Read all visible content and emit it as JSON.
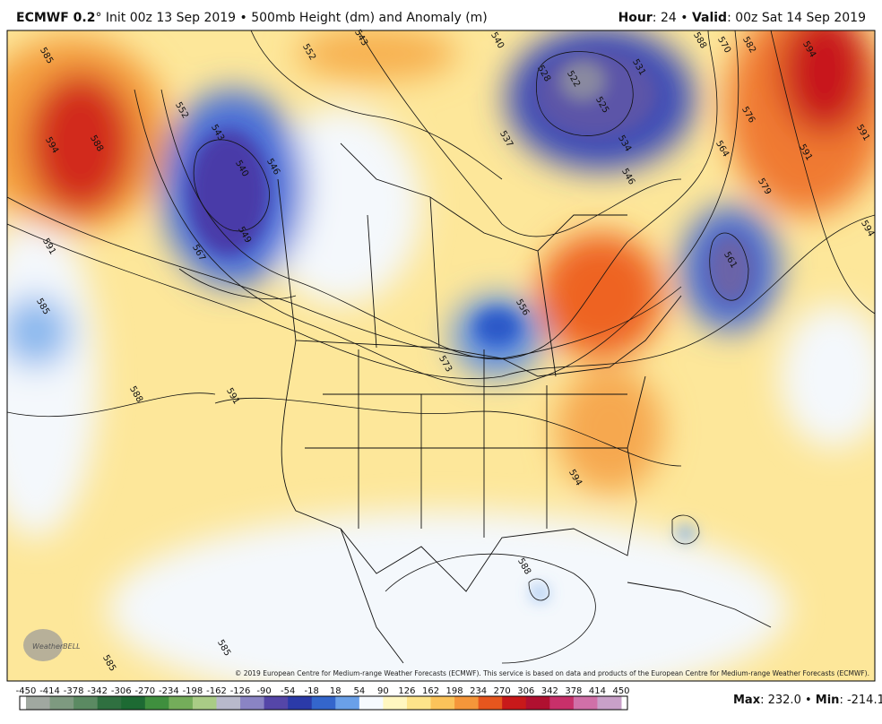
{
  "header": {
    "model": "ECMWF 0.2",
    "init": "° Init 00z 13 Sep 2019 • 500mb Height (dm) and Anomaly (m)",
    "hour_label": "Hour",
    "hour": ": 24 • ",
    "valid_label": "Valid",
    "valid": ": 00z Sat 14 Sep 2019"
  },
  "map": {
    "contour_labels": [
      543,
      552,
      540,
      585,
      594,
      588,
      552,
      543,
      540,
      546,
      549,
      567,
      591,
      585,
      588,
      591,
      528,
      522,
      531,
      525,
      534,
      546,
      537,
      588,
      582,
      594,
      570,
      576,
      564,
      591,
      579,
      594,
      561,
      556,
      573,
      594,
      588,
      585,
      585,
      591
    ],
    "copyright": "© 2019 European Centre for Medium-range Weather Forecasts (ECMWF). This service is based on data and products of the European Centre for Medium-range Weather Forecasts (ECMWF).",
    "logo": "WeatherBELL"
  },
  "colorbar": {
    "ticks": [
      -450,
      -414,
      -378,
      -342,
      -306,
      -270,
      -234,
      -198,
      -162,
      -126,
      -90,
      -54,
      -18,
      18,
      54,
      90,
      126,
      162,
      198,
      234,
      270,
      306,
      342,
      378,
      414,
      450
    ],
    "colors": [
      "#a0a8a0",
      "#7e9a80",
      "#5b8a62",
      "#2f7040",
      "#1d6a33",
      "#3f8f3e",
      "#74ad5a",
      "#a9cc86",
      "#b8b9cc",
      "#8a84c4",
      "#5546a8",
      "#2b3aa8",
      "#3466cc",
      "#6aa0e8",
      "#f6fafe",
      "#fff7c0",
      "#fde48a",
      "#fbc35a",
      "#f5963a",
      "#e6561e",
      "#c8191a",
      "#b01030",
      "#c8306a",
      "#d070a8",
      "#c8a0c8"
    ]
  },
  "footer": {
    "max_label": "Max",
    "max": ": 232.0 • ",
    "min_label": "Min",
    "min": ": -214.1"
  }
}
